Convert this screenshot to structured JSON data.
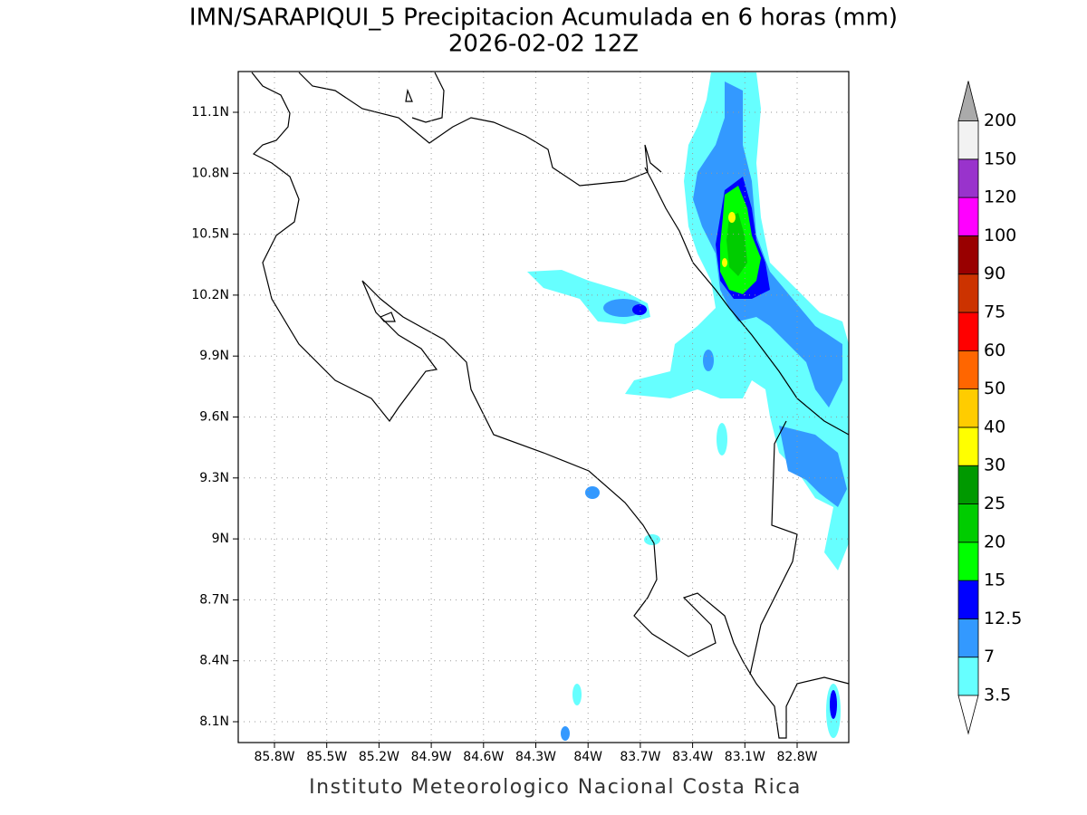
{
  "title": "IMN/SARAPIQUI_5 Precipitacion Acumulada en 6 horas (mm)",
  "subtitle": "2026-02-02 12Z",
  "map": {
    "lat_labels": [
      "11.1N",
      "10.8N",
      "10.5N",
      "10.2N",
      "9.9N",
      "9.6N",
      "9.3N",
      "9N",
      "8.7N",
      "8.4N",
      "8.1N"
    ],
    "lon_labels": [
      "85.8W",
      "85.5W",
      "85.2W",
      "84.9W",
      "84.6W",
      "84.3W",
      "84W",
      "83.7W",
      "83.4W",
      "83.1W",
      "82.8W"
    ]
  },
  "legend": {
    "levels": [
      3.5,
      7,
      12.5,
      15,
      20,
      25,
      30,
      40,
      50,
      60,
      75,
      90,
      100,
      120,
      150,
      200
    ],
    "colors": [
      "#66ffff",
      "#3399ff",
      "#0000ff",
      "#00ff00",
      "#00cc00",
      "#009900",
      "#ffff00",
      "#ffcc00",
      "#ff6600",
      "#ff0000",
      "#cc3300",
      "#990000",
      "#ff00ff",
      "#9933cc",
      "#f2f2f2"
    ],
    "over_color": "#aaaaaa",
    "under_color": "#ffffff"
  },
  "footer": "Instituto Meteorologico Nacional Costa Rica"
}
